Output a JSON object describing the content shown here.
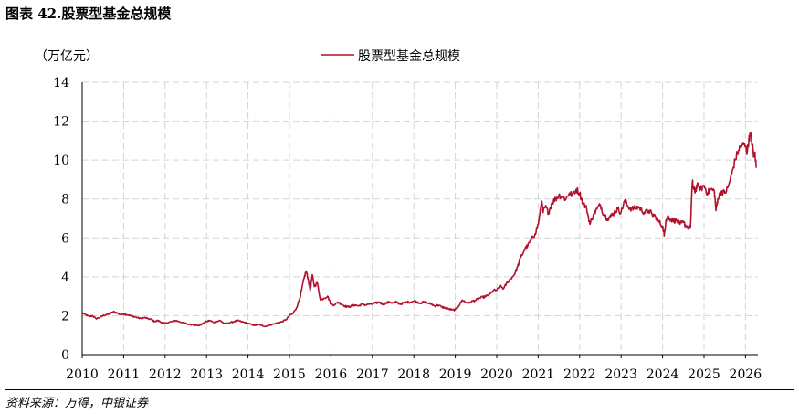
{
  "figure": {
    "title": "图表 42.股票型基金总规模",
    "source": "资料来源：万得，中银证券"
  },
  "chart_data": {
    "type": "line",
    "unit_label": "（万亿元）",
    "ylim": [
      0,
      14
    ],
    "yticks": [
      "0",
      "2",
      "4",
      "6",
      "8",
      "10",
      "12",
      "14"
    ],
    "xlim": [
      2010,
      2026.3
    ],
    "xticks": [
      "2010",
      "2011",
      "2012",
      "2013",
      "2014",
      "2015",
      "2016",
      "2017",
      "2018",
      "2019",
      "2020",
      "2021",
      "2022",
      "2023",
      "2024",
      "2025",
      "2026"
    ],
    "grid": true,
    "legend_position": "top-center",
    "series": [
      {
        "name": "股票型基金总规模",
        "color": "#b0112d",
        "x": [
          2010.0,
          2010.08,
          2010.17,
          2010.25,
          2010.33,
          2010.42,
          2010.5,
          2010.58,
          2010.67,
          2010.75,
          2010.83,
          2010.92,
          2011.0,
          2011.08,
          2011.17,
          2011.25,
          2011.33,
          2011.42,
          2011.5,
          2011.58,
          2011.67,
          2011.75,
          2011.83,
          2011.92,
          2012.0,
          2012.08,
          2012.17,
          2012.25,
          2012.33,
          2012.42,
          2012.5,
          2012.58,
          2012.67,
          2012.75,
          2012.83,
          2012.92,
          2013.0,
          2013.08,
          2013.17,
          2013.25,
          2013.33,
          2013.42,
          2013.5,
          2013.58,
          2013.67,
          2013.75,
          2013.83,
          2013.92,
          2014.0,
          2014.08,
          2014.17,
          2014.25,
          2014.33,
          2014.42,
          2014.5,
          2014.58,
          2014.67,
          2014.75,
          2014.83,
          2014.92,
          2015.0,
          2015.08,
          2015.17,
          2015.25,
          2015.3,
          2015.35,
          2015.4,
          2015.45,
          2015.5,
          2015.55,
          2015.6,
          2015.67,
          2015.75,
          2015.83,
          2015.92,
          2016.0,
          2016.08,
          2016.17,
          2016.25,
          2016.33,
          2016.42,
          2016.5,
          2016.58,
          2016.67,
          2016.75,
          2016.83,
          2016.92,
          2017.0,
          2017.08,
          2017.17,
          2017.25,
          2017.33,
          2017.42,
          2017.5,
          2017.58,
          2017.67,
          2017.75,
          2017.83,
          2017.92,
          2018.0,
          2018.08,
          2018.17,
          2018.25,
          2018.33,
          2018.42,
          2018.5,
          2018.58,
          2018.67,
          2018.75,
          2018.83,
          2018.92,
          2019.0,
          2019.08,
          2019.17,
          2019.25,
          2019.33,
          2019.42,
          2019.5,
          2019.58,
          2019.67,
          2019.75,
          2019.83,
          2019.92,
          2020.0,
          2020.08,
          2020.17,
          2020.25,
          2020.33,
          2020.42,
          2020.5,
          2020.58,
          2020.67,
          2020.75,
          2020.83,
          2020.92,
          2021.0,
          2021.04,
          2021.08,
          2021.12,
          2021.17,
          2021.25,
          2021.33,
          2021.42,
          2021.5,
          2021.58,
          2021.67,
          2021.75,
          2021.83,
          2021.92,
          2022.0,
          2022.08,
          2022.17,
          2022.25,
          2022.33,
          2022.42,
          2022.5,
          2022.58,
          2022.67,
          2022.75,
          2022.83,
          2022.92,
          2023.0,
          2023.08,
          2023.17,
          2023.25,
          2023.33,
          2023.42,
          2023.5,
          2023.58,
          2023.67,
          2023.75,
          2023.83,
          2023.92,
          2024.0,
          2024.04,
          2024.08,
          2024.12,
          2024.17,
          2024.25,
          2024.33,
          2024.42,
          2024.5,
          2024.58,
          2024.67,
          2024.72,
          2024.75,
          2024.79,
          2024.83,
          2024.92,
          2025.0,
          2025.08,
          2025.17,
          2025.25,
          2025.29,
          2025.33,
          2025.42,
          2025.5,
          2025.58,
          2025.67,
          2025.75,
          2025.83,
          2025.92,
          2026.0,
          2026.04,
          2026.08,
          2026.12,
          2026.17,
          2026.2,
          2026.23,
          2026.26
        ],
        "values": [
          2.15,
          2.05,
          1.95,
          2.0,
          1.85,
          1.9,
          2.0,
          2.05,
          2.1,
          2.2,
          2.15,
          2.05,
          2.1,
          2.05,
          2.0,
          1.95,
          1.9,
          1.85,
          1.9,
          1.85,
          1.8,
          1.7,
          1.75,
          1.65,
          1.6,
          1.65,
          1.7,
          1.75,
          1.7,
          1.65,
          1.6,
          1.55,
          1.55,
          1.5,
          1.5,
          1.6,
          1.7,
          1.75,
          1.65,
          1.7,
          1.75,
          1.6,
          1.6,
          1.65,
          1.7,
          1.75,
          1.7,
          1.65,
          1.6,
          1.55,
          1.5,
          1.55,
          1.5,
          1.45,
          1.5,
          1.55,
          1.6,
          1.65,
          1.7,
          1.8,
          2.0,
          2.1,
          2.4,
          2.9,
          3.4,
          3.9,
          4.3,
          3.9,
          3.3,
          4.1,
          3.5,
          3.7,
          2.8,
          2.9,
          3.0,
          2.6,
          2.55,
          2.7,
          2.6,
          2.5,
          2.45,
          2.5,
          2.55,
          2.5,
          2.6,
          2.55,
          2.6,
          2.6,
          2.65,
          2.7,
          2.6,
          2.65,
          2.7,
          2.65,
          2.7,
          2.6,
          2.65,
          2.7,
          2.7,
          2.75,
          2.7,
          2.65,
          2.7,
          2.65,
          2.6,
          2.5,
          2.55,
          2.45,
          2.4,
          2.35,
          2.3,
          2.3,
          2.5,
          2.8,
          2.7,
          2.65,
          2.75,
          2.8,
          2.9,
          2.95,
          3.0,
          3.1,
          3.3,
          3.3,
          3.5,
          3.4,
          3.7,
          3.9,
          4.1,
          4.5,
          5.0,
          5.4,
          5.6,
          5.9,
          6.2,
          6.7,
          7.2,
          7.9,
          7.3,
          7.6,
          7.3,
          7.8,
          8.0,
          8.2,
          8.1,
          8.0,
          8.3,
          8.2,
          8.5,
          8.3,
          7.8,
          7.5,
          6.7,
          7.2,
          7.5,
          7.7,
          7.2,
          7.0,
          7.1,
          7.3,
          7.5,
          7.3,
          7.9,
          7.6,
          7.5,
          7.5,
          7.6,
          7.4,
          7.3,
          7.4,
          7.2,
          7.1,
          6.8,
          6.6,
          6.1,
          6.9,
          7.1,
          7.0,
          6.9,
          6.9,
          6.7,
          6.8,
          6.6,
          6.5,
          8.9,
          8.5,
          8.4,
          8.7,
          8.5,
          8.7,
          8.3,
          8.5,
          8.4,
          7.4,
          8.0,
          8.4,
          8.3,
          8.6,
          9.3,
          10.0,
          10.5,
          10.8,
          10.7,
          10.4,
          11.0,
          11.4,
          10.7,
          10.2,
          10.4,
          9.6
        ]
      }
    ]
  }
}
